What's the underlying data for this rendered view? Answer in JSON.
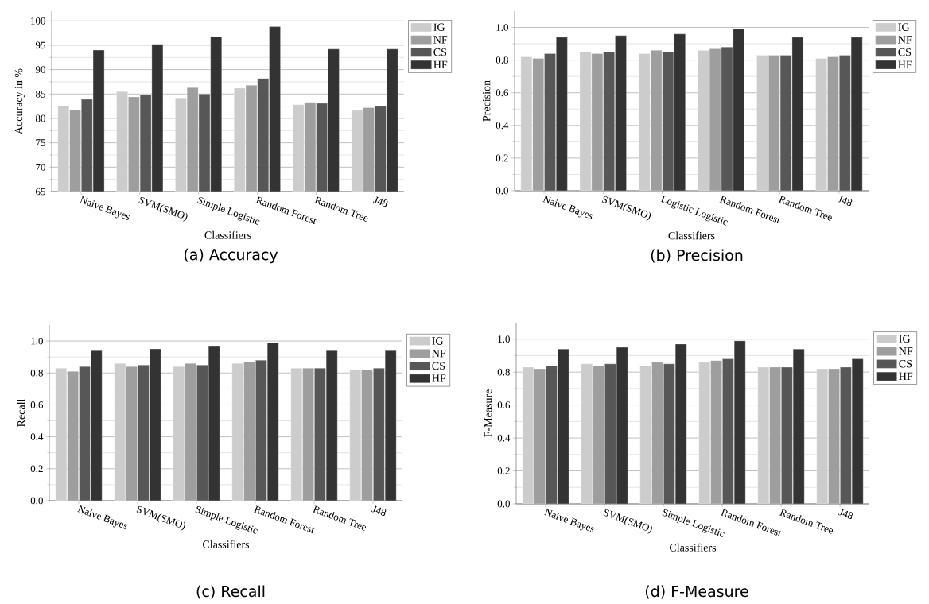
{
  "chart_data": [
    {
      "type": "bar",
      "xlabel": "Classifiers",
      "ylabel": "Accuracy in %",
      "annotations": [
        "(a) Accuracy"
      ],
      "categories": [
        "Naive Bayes",
        "SVM(SMO)",
        "Simple Logistic",
        "Random Forest",
        "Random Tree",
        "J48"
      ],
      "series": [
        {
          "name": "IG",
          "color": "#cccccc",
          "values": [
            82.5,
            85.5,
            84.2,
            86.2,
            82.8,
            81.7
          ]
        },
        {
          "name": "NF",
          "color": "#9e9e9e",
          "values": [
            81.7,
            84.4,
            86.3,
            86.8,
            83.3,
            82.2
          ]
        },
        {
          "name": "CS",
          "color": "#575757",
          "values": [
            83.9,
            84.9,
            85.0,
            88.2,
            83.1,
            82.5
          ]
        },
        {
          "name": "HF",
          "color": "#333333",
          "values": [
            94.0,
            95.2,
            96.7,
            98.8,
            94.2,
            94.2
          ]
        }
      ],
      "ylim": [
        65,
        102
      ],
      "yticks": [
        65,
        70,
        75,
        80,
        85,
        90,
        95,
        100
      ],
      "grid": "y",
      "legend": "top right"
    },
    {
      "type": "bar",
      "xlabel": "Classifiers",
      "ylabel": "Precision",
      "annotations": [
        "(b) Precision"
      ],
      "categories": [
        "Naive Bayes",
        "SVM(SMO)",
        "Logistic Logistic",
        "Random Forest",
        "Random Tree",
        "J48"
      ],
      "series": [
        {
          "name": "IG",
          "color": "#cccccc",
          "values": [
            0.82,
            0.85,
            0.84,
            0.86,
            0.83,
            0.81
          ]
        },
        {
          "name": "NF",
          "color": "#9e9e9e",
          "values": [
            0.81,
            0.84,
            0.86,
            0.87,
            0.83,
            0.82
          ]
        },
        {
          "name": "CS",
          "color": "#575757",
          "values": [
            0.84,
            0.85,
            0.85,
            0.88,
            0.83,
            0.83
          ]
        },
        {
          "name": "HF",
          "color": "#333333",
          "values": [
            0.94,
            0.95,
            0.96,
            0.99,
            0.94,
            0.94
          ]
        }
      ],
      "ylim": [
        0,
        1.1
      ],
      "yticks": [
        {
          "value": 0,
          "label": "0.0"
        },
        {
          "value": 0.2,
          "label": "0.2"
        },
        {
          "value": 0.4,
          "label": "0.4"
        },
        {
          "value": 0.6,
          "label": "0.6"
        },
        {
          "value": 0.8,
          "label": "0.8"
        },
        {
          "value": 1,
          "label": "1.0"
        }
      ],
      "grid": "y",
      "legend": "top right"
    },
    {
      "type": "bar",
      "xlabel": "Classifiers",
      "ylabel": "Recall",
      "annotations": [
        "(c) Recall"
      ],
      "categories": [
        "Naive Bayes",
        "SVM(SMO)",
        "Simple Logistic",
        "Random Forest",
        "Random Tree",
        "J48"
      ],
      "series": [
        {
          "name": "IG",
          "color": "#cccccc",
          "values": [
            0.83,
            0.86,
            0.84,
            0.86,
            0.83,
            0.82
          ]
        },
        {
          "name": "NF",
          "color": "#9e9e9e",
          "values": [
            0.81,
            0.84,
            0.86,
            0.87,
            0.83,
            0.82
          ]
        },
        {
          "name": "CS",
          "color": "#575757",
          "values": [
            0.84,
            0.85,
            0.85,
            0.88,
            0.83,
            0.83
          ]
        },
        {
          "name": "HF",
          "color": "#333333",
          "values": [
            0.94,
            0.95,
            0.97,
            0.99,
            0.94,
            0.94
          ]
        }
      ],
      "ylim": [
        0,
        1.1
      ],
      "yticks": [
        {
          "value": 0,
          "label": "0.0"
        },
        {
          "value": 0.2,
          "label": "0.2"
        },
        {
          "value": 0.4,
          "label": "0.4"
        },
        {
          "value": 0.6,
          "label": "0.6"
        },
        {
          "value": 0.8,
          "label": "0.8"
        },
        {
          "value": 1,
          "label": "1.0"
        }
      ],
      "grid": "y",
      "legend": "top right"
    },
    {
      "type": "bar",
      "xlabel": "Classifiers",
      "ylabel": "F-Measure",
      "annotations": [
        "(d) F-Measure"
      ],
      "categories": [
        "Naive Bayes",
        "SVM(SMO)",
        "Simple Logistic",
        "Random Forest",
        "Random Tree",
        "J48"
      ],
      "series": [
        {
          "name": "IG",
          "color": "#cccccc",
          "values": [
            0.83,
            0.85,
            0.84,
            0.86,
            0.83,
            0.82
          ]
        },
        {
          "name": "NF",
          "color": "#9e9e9e",
          "values": [
            0.82,
            0.84,
            0.86,
            0.87,
            0.83,
            0.82
          ]
        },
        {
          "name": "CS",
          "color": "#575757",
          "values": [
            0.84,
            0.85,
            0.85,
            0.88,
            0.83,
            0.83
          ]
        },
        {
          "name": "HF",
          "color": "#333333",
          "values": [
            0.94,
            0.95,
            0.97,
            0.99,
            0.94,
            0.88
          ]
        }
      ],
      "ylim": [
        0,
        1.1
      ],
      "yticks": [
        {
          "value": 0,
          "label": "0.0"
        },
        {
          "value": 0.2,
          "label": "0.2"
        },
        {
          "value": 0.4,
          "label": "0.4"
        },
        {
          "value": 0.6,
          "label": "0.6"
        },
        {
          "value": 0.8,
          "label": "0.8"
        },
        {
          "value": 1,
          "label": "1.0"
        }
      ],
      "grid": "y",
      "legend": "top right"
    }
  ]
}
